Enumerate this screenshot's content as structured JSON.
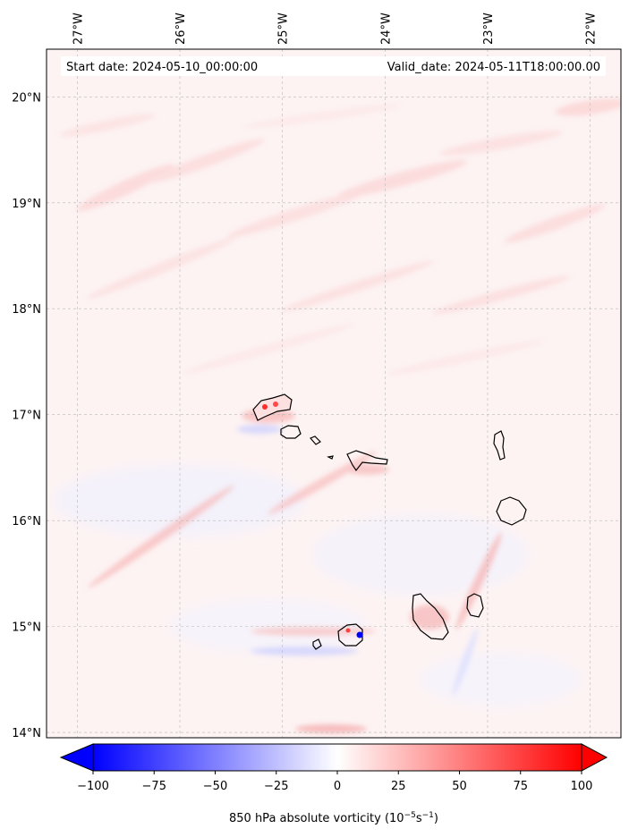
{
  "header": {
    "start_date": "Start date: 2024-05-10_00:00:00",
    "valid_date": "Valid_date: 2024-05-11T18:00:00.00"
  },
  "map": {
    "lon_range": [
      -27.3,
      -21.7
    ],
    "lat_range": [
      13.95,
      20.45
    ],
    "lon_ticks": [
      {
        "value": -27,
        "label": "27°W"
      },
      {
        "value": -26,
        "label": "26°W"
      },
      {
        "value": -25,
        "label": "25°W"
      },
      {
        "value": -24,
        "label": "24°W"
      },
      {
        "value": -23,
        "label": "23°W"
      },
      {
        "value": -22,
        "label": "22°W"
      }
    ],
    "lat_ticks": [
      {
        "value": 14,
        "label": "14°N"
      },
      {
        "value": 15,
        "label": "15°N"
      },
      {
        "value": 16,
        "label": "16°N"
      },
      {
        "value": 17,
        "label": "17°N"
      },
      {
        "value": 18,
        "label": "18°N"
      },
      {
        "value": 19,
        "label": "19°N"
      },
      {
        "value": 20,
        "label": "20°N"
      }
    ],
    "gridlines": true
  },
  "colorbar": {
    "colormap": "bwr",
    "min": -100,
    "max": 100,
    "extend": "both",
    "ticks": [
      {
        "value": -100,
        "label": "−100"
      },
      {
        "value": -75,
        "label": "−75"
      },
      {
        "value": -50,
        "label": "−50"
      },
      {
        "value": -25,
        "label": "−25"
      },
      {
        "value": 0,
        "label": "0"
      },
      {
        "value": 25,
        "label": "25"
      },
      {
        "value": 50,
        "label": "50"
      },
      {
        "value": 75,
        "label": "75"
      },
      {
        "value": 100,
        "label": "100"
      }
    ],
    "label_prefix": "850 hPa absolute vorticity (10",
    "label_exp1": "−5",
    "label_mid": "s",
    "label_exp2": "−1",
    "label_suffix": ")"
  },
  "colors": {
    "negative": "#0000ff",
    "positive": "#ff0000",
    "neutral": "#ffffff",
    "background_tint": "#fdf2f2",
    "coastline": "#000000"
  }
}
